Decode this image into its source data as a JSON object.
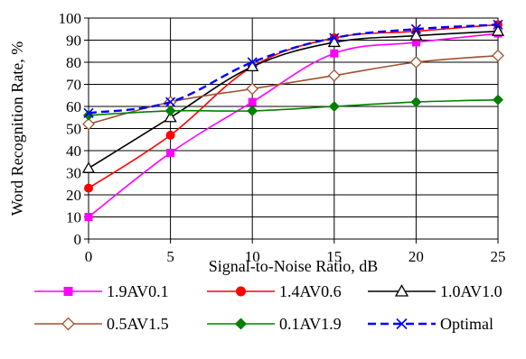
{
  "chart_data": {
    "type": "line",
    "xlabel": "Signal-to-Noise Ratio, dB",
    "ylabel": "Word Recognition Rate, %",
    "x": [
      0,
      5,
      10,
      15,
      20,
      25
    ],
    "xlim": [
      0,
      25
    ],
    "ylim": [
      0,
      100
    ],
    "xticks": [
      "0",
      "5",
      "10",
      "15",
      "20",
      "25"
    ],
    "yticks": [
      "0",
      "10",
      "20",
      "30",
      "40",
      "50",
      "60",
      "70",
      "80",
      "90",
      "100"
    ],
    "grid": "horizontal and vertical",
    "legend_position": "bottom",
    "series": [
      {
        "name": "1.9AV0.1",
        "color": "#ff00ff",
        "marker": "square",
        "dash": "solid",
        "values": [
          10,
          39,
          62,
          84,
          89,
          93
        ]
      },
      {
        "name": "1.4AV0.6",
        "color": "#ff0000",
        "marker": "circle",
        "dash": "solid",
        "values": [
          23,
          47,
          78,
          91,
          94,
          97
        ]
      },
      {
        "name": "1.0AV1.0",
        "color": "#000000",
        "marker": "triangle",
        "dash": "solid",
        "values": [
          32,
          55,
          78,
          89,
          92,
          94
        ]
      },
      {
        "name": "0.5AV1.5",
        "color": "#a0522d",
        "marker": "diamond-open",
        "dash": "solid",
        "values": [
          52,
          62,
          68,
          74,
          80,
          83
        ]
      },
      {
        "name": "0.1AV1.9",
        "color": "#008000",
        "marker": "diamond",
        "dash": "solid",
        "values": [
          56,
          58,
          58,
          60,
          62,
          63
        ]
      },
      {
        "name": "Optimal",
        "color": "#0000ff",
        "marker": "x",
        "dash": "dashed",
        "values": [
          57,
          62,
          80,
          91,
          95,
          97
        ]
      }
    ]
  }
}
